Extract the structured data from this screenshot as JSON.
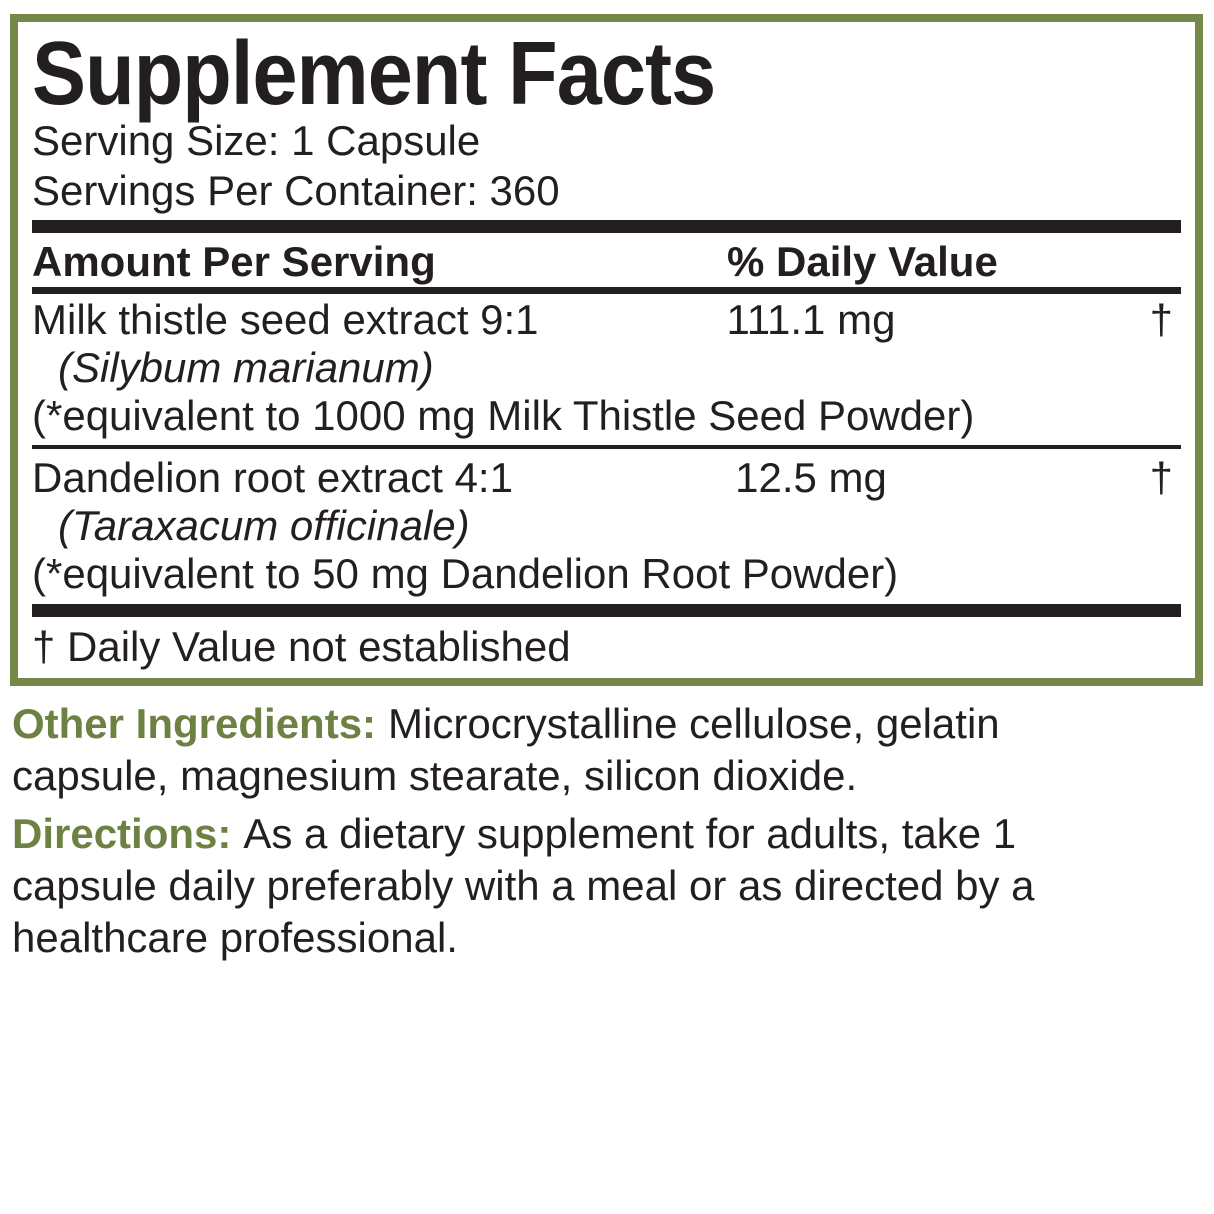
{
  "panel": {
    "title": "Supplement Facts",
    "serving_size": "Serving Size: 1 Capsule",
    "servings_per_container": "Servings Per Container: 360",
    "header": {
      "amount_per_serving": "Amount Per Serving",
      "daily_value": "% Daily Value"
    },
    "rows": [
      {
        "name": "Milk thistle seed extract 9:1",
        "latin": "(Silybum marianum)",
        "equivalent": "(*equivalent to 1000 mg Milk Thistle Seed Powder)",
        "amount": "111.1 mg",
        "daily_value": "†"
      },
      {
        "name": "Dandelion root extract 4:1",
        "latin": "(Taraxacum officinale)",
        "equivalent": "(*equivalent to 50 mg Dandelion Root Powder)",
        "amount": "12.5 mg",
        "daily_value": "†"
      }
    ],
    "footnote": "† Daily Value not established"
  },
  "other_ingredients": {
    "label": "Other Ingredients:",
    "lines": [
      "Microcrystalline cellulose, gelatin",
      "capsule, magnesium stearate, silicon dioxide."
    ]
  },
  "directions": {
    "label": "Directions:",
    "lines": [
      "As a dietary supplement for adults, take 1",
      "capsule daily preferably with a meal or as directed by a",
      "healthcare professional."
    ]
  },
  "colors": {
    "border_green": "#76894a",
    "accent_green": "#6d8142",
    "text_black": "#231f20"
  }
}
